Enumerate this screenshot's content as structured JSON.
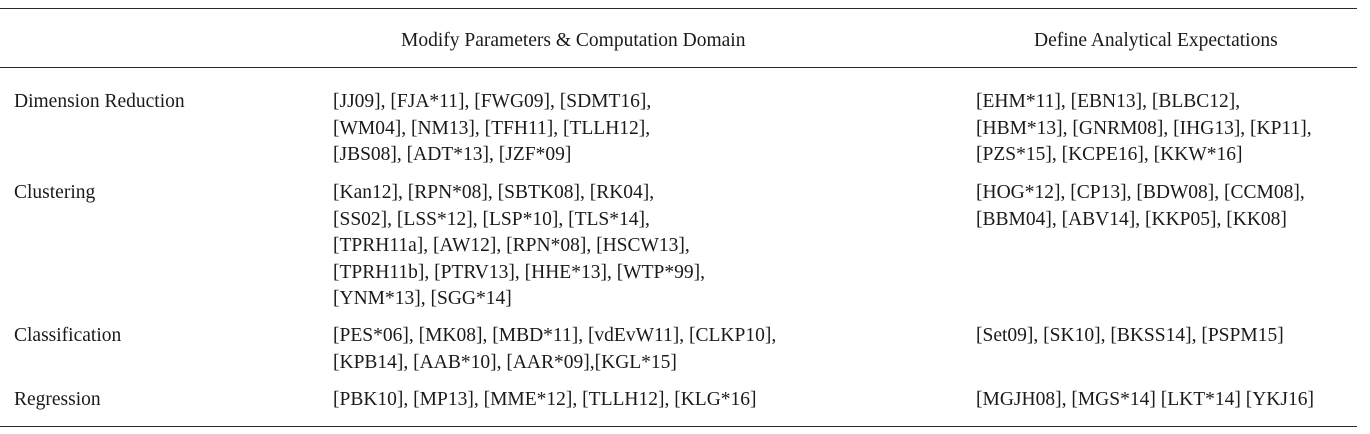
{
  "table": {
    "headers": {
      "topic": "",
      "modify": "Modify Parameters & Computation Domain",
      "expect": "Define Analytical Expectations"
    },
    "rows": [
      {
        "topic": "Dimension Reduction",
        "modify": [
          "[JJ09], [FJA*11], [FWG09], [SDMT16],",
          "[WM04], [NM13], [TFH11], [TLLH12],",
          "[JBS08], [ADT*13], [JZF*09]"
        ],
        "expect": [
          "[EHM*11],  [EBN13], [BLBC12],",
          "[HBM*13], [GNRM08], [IHG13],  [KP11],",
          "[PZS*15], [KCPE16], [KKW*16]"
        ]
      },
      {
        "topic": "Clustering",
        "modify": [
          "[Kan12], [RPN*08], [SBTK08], [RK04],",
          "[SS02], [LSS*12], [LSP*10], [TLS*14],",
          "[TPRH11a], [AW12], [RPN*08], [HSCW13],",
          "[TPRH11b], [PTRV13], [HHE*13], [WTP*99],",
          "[YNM*13], [SGG*14]"
        ],
        "expect": [
          "[HOG*12], [CP13], [BDW08], [CCM08],",
          "[BBM04], [ABV14], [KKP05],  [KK08]"
        ]
      },
      {
        "topic": "Classification",
        "modify": [
          "[PES*06], [MK08], [MBD*11], [vdEvW11], [CLKP10],",
          "[KPB14], [AAB*10], [AAR*09],[KGL*15]"
        ],
        "expect": [
          "[Set09], [SK10], [BKSS14], [PSPM15]"
        ]
      },
      {
        "topic": "Regression",
        "modify": [
          "[PBK10], [MP13], [MME*12], [TLLH12],  [KLG*16]"
        ],
        "expect": [
          "[MGJH08], [MGS*14] [LKT*14] [YKJ16]"
        ]
      }
    ]
  }
}
